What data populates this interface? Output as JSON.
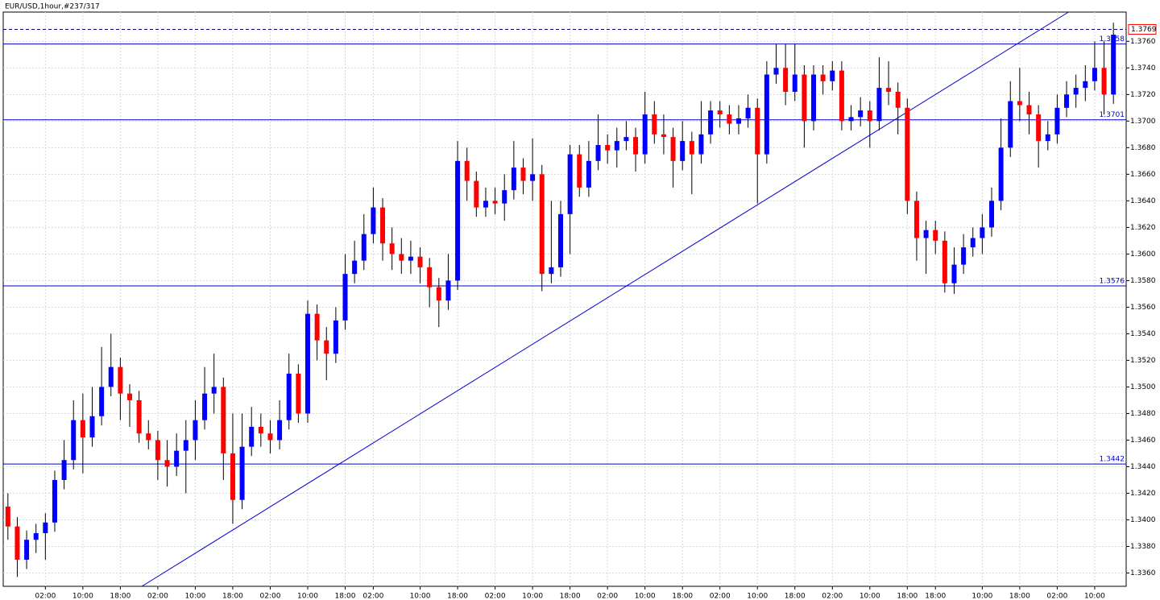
{
  "chart_data": {
    "type": "candlestick",
    "title": "EUR/USD,1hour,#237/317",
    "up_color": "#0000ff",
    "down_color": "#ff0000",
    "grid": true,
    "categories": [
      null,
      null,
      null,
      null,
      "02:00",
      null,
      null,
      null,
      "10:00",
      null,
      null,
      null,
      "18:00",
      null,
      null,
      null,
      "02:00",
      null,
      null,
      null,
      "10:00",
      null,
      null,
      null,
      "18:00",
      null,
      null,
      null,
      "02:00",
      null,
      null,
      null,
      "10:00",
      null,
      null,
      null,
      "18:00",
      null,
      null,
      "02:00",
      null,
      null,
      null,
      null,
      "10:00",
      null,
      null,
      null,
      "18:00",
      null,
      null,
      null,
      "02:00",
      null,
      null,
      null,
      "10:00",
      null,
      null,
      null,
      "18:00",
      null,
      null,
      null,
      "02:00",
      null,
      null,
      null,
      "10:00",
      null,
      null,
      null,
      "18:00",
      null,
      null,
      null,
      "02:00",
      null,
      null,
      null,
      "10:00",
      null,
      null,
      null,
      "18:00",
      null,
      null,
      null,
      "02:00",
      null,
      null,
      null,
      "10:00",
      null,
      null,
      null,
      "18:00",
      null,
      null,
      "18:00",
      null,
      null,
      null,
      null,
      "10:00",
      null,
      null,
      null,
      "18:00",
      null,
      null,
      null,
      "02:00",
      null,
      null,
      null,
      "10:00",
      null,
      null
    ],
    "open": [
      1.341,
      1.3395,
      1.337,
      1.3385,
      1.339,
      1.3398,
      1.343,
      1.3445,
      1.3475,
      1.3462,
      1.3478,
      1.35,
      1.3515,
      1.3495,
      1.349,
      1.3465,
      1.346,
      1.3445,
      1.344,
      1.3452,
      1.346,
      1.3475,
      1.3495,
      1.35,
      1.345,
      1.3415,
      1.3455,
      1.347,
      1.3465,
      1.346,
      1.3475,
      1.351,
      1.348,
      1.3555,
      1.3535,
      1.3525,
      1.355,
      1.3585,
      1.3595,
      1.3615,
      1.3635,
      1.3608,
      1.36,
      1.3595,
      1.3598,
      1.359,
      1.3575,
      1.3565,
      1.358,
      1.367,
      1.3655,
      1.3635,
      1.364,
      1.3638,
      1.3648,
      1.3665,
      1.3655,
      1.366,
      1.3585,
      1.359,
      1.363,
      1.3675,
      1.365,
      1.367,
      1.3682,
      1.3678,
      1.3685,
      1.3688,
      1.3675,
      1.3705,
      1.369,
      1.3688,
      1.367,
      1.3685,
      1.3675,
      1.369,
      1.3708,
      1.3705,
      1.3698,
      1.3702,
      1.371,
      1.3675,
      1.3735,
      1.374,
      1.3722,
      1.3735,
      1.37,
      1.3735,
      1.373,
      1.3738,
      1.37,
      1.3703,
      1.3708,
      1.37,
      1.3725,
      1.3722,
      1.371,
      1.364,
      1.3612,
      1.3618,
      1.361,
      1.3578,
      1.3592,
      1.3605,
      1.3612,
      1.362,
      1.364,
      1.368,
      1.3715,
      1.3712,
      1.3705,
      1.3685,
      1.369,
      1.371,
      1.372,
      1.3725,
      1.373,
      1.374,
      1.372
    ],
    "high": [
      1.342,
      1.3402,
      1.3392,
      1.3397,
      1.3405,
      1.3437,
      1.346,
      1.349,
      1.3495,
      1.35,
      1.353,
      1.354,
      1.3522,
      1.3502,
      1.3497,
      1.3475,
      1.3467,
      1.346,
      1.3465,
      1.3475,
      1.349,
      1.3515,
      1.3525,
      1.3507,
      1.348,
      1.348,
      1.3485,
      1.348,
      1.3475,
      1.349,
      1.3525,
      1.3517,
      1.3565,
      1.3562,
      1.3545,
      1.356,
      1.36,
      1.361,
      1.363,
      1.365,
      1.3642,
      1.362,
      1.3612,
      1.361,
      1.3605,
      1.3597,
      1.3582,
      1.36,
      1.3685,
      1.368,
      1.3662,
      1.365,
      1.365,
      1.366,
      1.3685,
      1.3672,
      1.3687,
      1.3667,
      1.364,
      1.364,
      1.3682,
      1.3682,
      1.3685,
      1.3705,
      1.369,
      1.3695,
      1.37,
      1.3695,
      1.3722,
      1.3715,
      1.3705,
      1.3695,
      1.37,
      1.3692,
      1.3715,
      1.3715,
      1.3715,
      1.3712,
      1.3712,
      1.372,
      1.3717,
      1.3745,
      1.3758,
      1.3758,
      1.3758,
      1.3742,
      1.3742,
      1.3742,
      1.3745,
      1.3745,
      1.3712,
      1.3718,
      1.3715,
      1.3748,
      1.3745,
      1.3729,
      1.3717,
      1.3647,
      1.3625,
      1.3625,
      1.3617,
      1.3605,
      1.3615,
      1.362,
      1.363,
      1.365,
      1.3702,
      1.373,
      1.374,
      1.3722,
      1.3712,
      1.37,
      1.372,
      1.373,
      1.3735,
      1.3742,
      1.376,
      1.376,
      1.3774
    ],
    "low": [
      1.3385,
      1.3357,
      1.3363,
      1.3375,
      1.337,
      1.3391,
      1.3423,
      1.3438,
      1.3435,
      1.3455,
      1.3471,
      1.3493,
      1.3475,
      1.347,
      1.3458,
      1.3453,
      1.343,
      1.3425,
      1.3433,
      1.342,
      1.3445,
      1.3468,
      1.348,
      1.343,
      1.3397,
      1.3408,
      1.3448,
      1.3455,
      1.345,
      1.3453,
      1.3468,
      1.3473,
      1.3473,
      1.352,
      1.3505,
      1.3518,
      1.3543,
      1.3578,
      1.3588,
      1.3608,
      1.3595,
      1.3588,
      1.3585,
      1.3585,
      1.3578,
      1.356,
      1.3545,
      1.3558,
      1.3573,
      1.364,
      1.3628,
      1.3628,
      1.363,
      1.3625,
      1.3641,
      1.3645,
      1.364,
      1.3572,
      1.3578,
      1.3583,
      1.36,
      1.3643,
      1.3643,
      1.3663,
      1.3668,
      1.3665,
      1.3678,
      1.3662,
      1.3668,
      1.3683,
      1.3675,
      1.365,
      1.3663,
      1.3645,
      1.3668,
      1.3683,
      1.3695,
      1.369,
      1.369,
      1.3695,
      1.3638,
      1.3668,
      1.3728,
      1.3712,
      1.3715,
      1.368,
      1.3693,
      1.372,
      1.3723,
      1.3693,
      1.3693,
      1.3696,
      1.368,
      1.3693,
      1.3712,
      1.369,
      1.363,
      1.3595,
      1.3585,
      1.36,
      1.3571,
      1.357,
      1.3585,
      1.3598,
      1.36,
      1.3613,
      1.3633,
      1.3673,
      1.37,
      1.369,
      1.3665,
      1.3678,
      1.3683,
      1.3703,
      1.371,
      1.3715,
      1.3723,
      1.3705,
      1.3713
    ],
    "close": [
      1.3395,
      1.337,
      1.3385,
      1.339,
      1.3398,
      1.343,
      1.3445,
      1.3475,
      1.3462,
      1.3478,
      1.35,
      1.3515,
      1.3495,
      1.349,
      1.3465,
      1.346,
      1.3445,
      1.344,
      1.3452,
      1.346,
      1.3475,
      1.3495,
      1.35,
      1.345,
      1.3415,
      1.3455,
      1.347,
      1.3465,
      1.346,
      1.3475,
      1.351,
      1.348,
      1.3555,
      1.3535,
      1.3525,
      1.355,
      1.3585,
      1.3595,
      1.3615,
      1.3635,
      1.3608,
      1.36,
      1.3595,
      1.3598,
      1.359,
      1.3575,
      1.3565,
      1.358,
      1.367,
      1.3655,
      1.3635,
      1.364,
      1.3638,
      1.3648,
      1.3665,
      1.3655,
      1.366,
      1.3585,
      1.359,
      1.363,
      1.3675,
      1.365,
      1.367,
      1.3682,
      1.3678,
      1.3685,
      1.3688,
      1.3675,
      1.3705,
      1.369,
      1.3688,
      1.367,
      1.3685,
      1.3675,
      1.369,
      1.3708,
      1.3705,
      1.3698,
      1.3702,
      1.371,
      1.3675,
      1.3735,
      1.374,
      1.3722,
      1.3735,
      1.37,
      1.3735,
      1.373,
      1.3738,
      1.37,
      1.3703,
      1.3708,
      1.37,
      1.3725,
      1.3722,
      1.371,
      1.364,
      1.3612,
      1.3618,
      1.361,
      1.3578,
      1.3592,
      1.3605,
      1.3612,
      1.362,
      1.364,
      1.368,
      1.3715,
      1.3712,
      1.3705,
      1.3685,
      1.369,
      1.371,
      1.372,
      1.3725,
      1.373,
      1.374,
      1.372,
      1.3765
    ],
    "ylim": [
      1.335,
      1.3782
    ],
    "yticks": [
      {
        "value": 1.336,
        "label": "1.3360"
      },
      {
        "value": 1.338,
        "label": "1.3380"
      },
      {
        "value": 1.34,
        "label": "1.3400"
      },
      {
        "value": 1.342,
        "label": "1.3420"
      },
      {
        "value": 1.344,
        "label": "1.3440"
      },
      {
        "value": 1.346,
        "label": "1.3460"
      },
      {
        "value": 1.348,
        "label": "1.3480"
      },
      {
        "value": 1.35,
        "label": "1.3500"
      },
      {
        "value": 1.352,
        "label": "1.3520"
      },
      {
        "value": 1.354,
        "label": "1.3540"
      },
      {
        "value": 1.356,
        "label": "1.3560"
      },
      {
        "value": 1.358,
        "label": "1.3580"
      },
      {
        "value": 1.36,
        "label": "1.3600"
      },
      {
        "value": 1.362,
        "label": "1.3620"
      },
      {
        "value": 1.364,
        "label": "1.3640"
      },
      {
        "value": 1.366,
        "label": "1.3660"
      },
      {
        "value": 1.368,
        "label": "1.3680"
      },
      {
        "value": 1.37,
        "label": "1.3700"
      },
      {
        "value": 1.372,
        "label": "1.3720"
      },
      {
        "value": 1.374,
        "label": "1.3740"
      },
      {
        "value": 1.376,
        "label": "1.3760"
      }
    ],
    "levels": [
      1.3758,
      1.3701,
      1.3576,
      1.3442
    ],
    "level_color": "#0000cc",
    "bid": 1.3769,
    "bid_color": "#ff0000",
    "trendline": {
      "x": [
        14.3,
        113.2
      ],
      "y": [
        1.335,
        1.3782
      ],
      "color": "#0000cc"
    }
  }
}
